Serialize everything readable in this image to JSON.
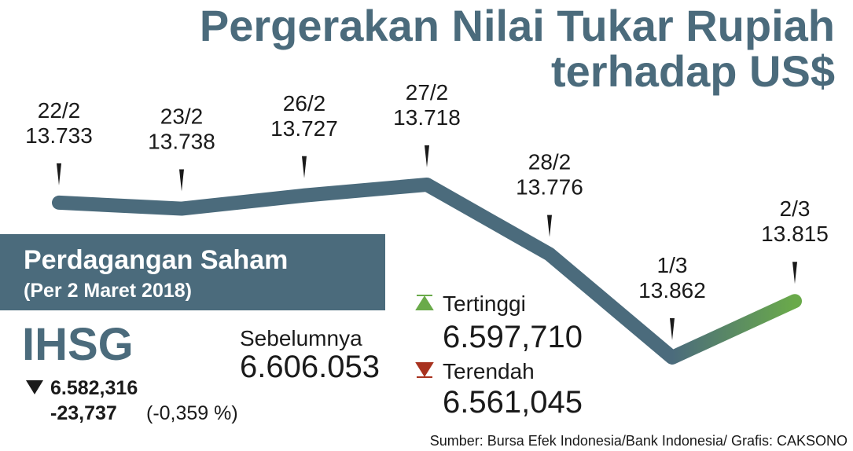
{
  "chart_data": {
    "type": "line",
    "title_lines": [
      "Pergerakan Nilai Tukar Rupiah",
      "terhadap US$"
    ],
    "categories": [
      "22/2",
      "23/2",
      "26/2",
      "27/2",
      "28/2",
      "1/3",
      "2/3"
    ],
    "values": [
      13.733,
      13.738,
      13.727,
      13.718,
      13.776,
      13.862,
      13.815
    ],
    "color": "#4b6b7c",
    "end_color": "#6aaa4a",
    "ylim": [
      13.88,
      13.7
    ],
    "source": "Sumber: Bursa Efek Indonesia/Bank Indonesia/ Grafis: CAKSONO"
  },
  "panel": {
    "title": "Perdagangan Saham",
    "subtitle": "(Per 2 Maret 2018)",
    "index": "IHSG",
    "close": "6.582,316",
    "change": "-23,737",
    "change_pct": "(-0,359 %)",
    "previous_label": "Sebelumnya",
    "previous": "6.606.053",
    "high_label": "Tertinggi",
    "high": "6.597,710",
    "low_label": "Terendah",
    "low": "6.561,045"
  }
}
